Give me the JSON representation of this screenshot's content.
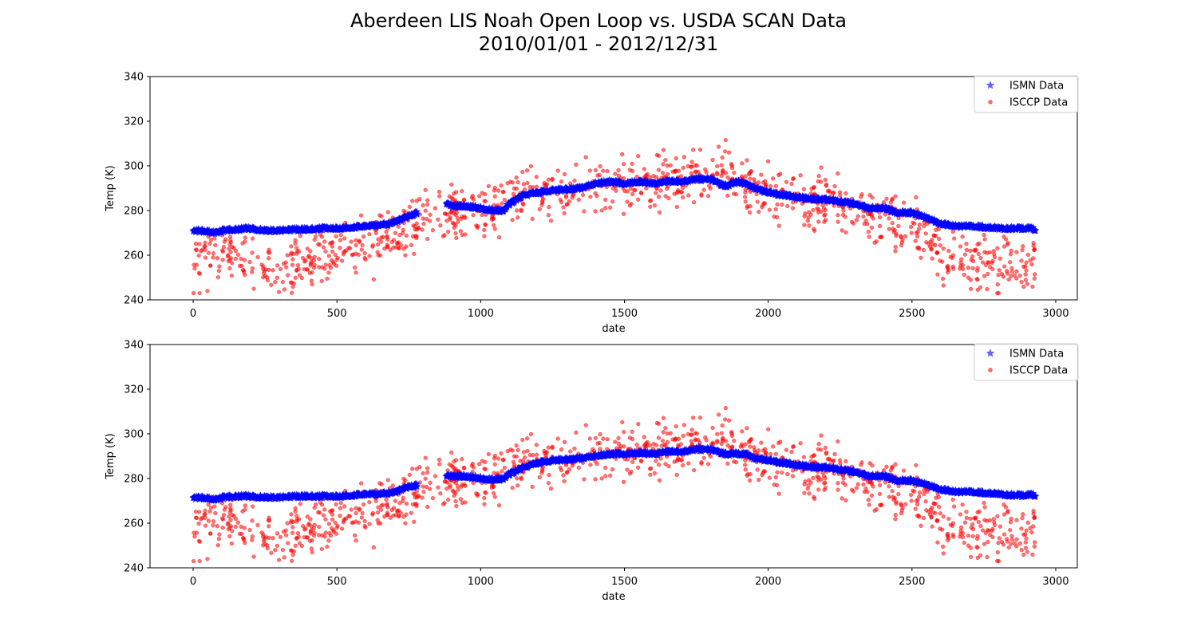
{
  "figure": {
    "title_line1": "Aberdeen LIS Noah Open Loop vs. USDA SCAN Data",
    "title_line2": "2010/01/01 - 2012/12/31"
  },
  "colors": {
    "ismn": "#0000ff",
    "isccp": "#ff0000"
  },
  "chart_data": [
    {
      "type": "scatter",
      "xlabel": "date",
      "ylabel": "Temp (K)",
      "xlim": [
        -150,
        3075
      ],
      "ylim": [
        240,
        340
      ],
      "xticks": [
        0,
        500,
        1000,
        1500,
        2000,
        2500,
        3000
      ],
      "yticks": [
        240,
        260,
        280,
        300,
        320,
        340
      ],
      "legend": {
        "placement": "top-right",
        "entries": [
          "ISMN Data",
          "ISCCP Data"
        ]
      },
      "series": [
        {
          "name": "ISMN Data",
          "marker": "star",
          "color": "#0000ff",
          "segments": [
            {
              "x": [
                0,
                50,
                80,
                100,
                150,
                200,
                250,
                300,
                350,
                400,
                450,
                500,
                550,
                600,
                650,
                680,
                700,
                720,
                740,
                760,
                780
              ],
              "y": [
                271,
                270.5,
                270,
                271,
                271.5,
                272,
                271,
                271,
                271.5,
                271.5,
                272,
                272,
                272.5,
                273,
                273.5,
                274,
                275,
                276,
                277,
                278,
                279
              ]
            },
            {
              "x": [
                880,
                900,
                950,
                1000,
                1050,
                1080,
                1100,
                1150,
                1200,
                1250,
                1300,
                1350,
                1400,
                1450,
                1500,
                1550,
                1600,
                1650,
                1700,
                1750,
                1800,
                1850,
                1900,
                1920,
                1950,
                2000,
                2050,
                2100,
                2150,
                2200,
                2250,
                2300,
                2350,
                2400,
                2450,
                2500,
                2550,
                2600,
                2650,
                2700,
                2750,
                2800,
                2850,
                2900,
                2930
              ],
              "y": [
                283,
                282,
                282,
                281,
                280,
                280,
                283,
                287,
                288,
                289,
                289.5,
                290,
                292,
                293,
                292,
                293,
                292,
                293,
                293,
                294,
                294,
                291,
                293,
                292,
                290,
                288,
                287,
                286,
                285,
                285,
                284,
                283,
                281,
                281,
                279,
                279,
                277,
                274,
                273,
                273,
                272.5,
                272,
                272,
                272,
                271.5
              ]
            }
          ]
        },
        {
          "name": "ISCCP Data",
          "marker": "circle",
          "color": "#ff0000",
          "anchors": {
            "x": [
              0,
              100,
              200,
              260,
              330,
              400,
              450,
              500,
              560,
              620,
              680,
              720,
              780,
              850,
              920,
              1000,
              1050,
              1100,
              1200,
              1300,
              1400,
              1500,
              1600,
              1700,
              1800,
              1850,
              1900,
              1950,
              2000,
              2100,
              2200,
              2300,
              2400,
              2500,
              2560,
              2620,
              2700,
              2800,
              2900,
              2930
            ],
            "y": [
              255,
              262,
              258,
              253,
              254,
              255,
              258,
              262,
              265,
              264,
              268,
              271,
              275,
              280,
              279,
              280,
              283,
              287,
              288,
              288,
              290,
              292,
              293,
              295,
              298,
              298,
              297,
              293,
              288,
              286,
              284,
              282,
              275,
              271,
              266,
              260,
              257,
              256,
              257,
              256
            ]
          },
          "spread": 9,
          "range": [
            243,
            317
          ]
        }
      ]
    },
    {
      "type": "scatter",
      "xlabel": "date",
      "ylabel": "Temp (K)",
      "xlim": [
        -150,
        3075
      ],
      "ylim": [
        240,
        340
      ],
      "xticks": [
        0,
        500,
        1000,
        1500,
        2000,
        2500,
        3000
      ],
      "yticks": [
        240,
        260,
        280,
        300,
        320,
        340
      ],
      "legend": {
        "placement": "top-right",
        "entries": [
          "ISMN Data",
          "ISCCP Data"
        ]
      },
      "series": [
        {
          "name": "ISMN Data",
          "marker": "star",
          "color": "#0000ff",
          "segments": [
            {
              "x": [
                0,
                50,
                80,
                100,
                150,
                200,
                250,
                300,
                350,
                400,
                450,
                500,
                550,
                600,
                650,
                680,
                700,
                720,
                740,
                760,
                780
              ],
              "y": [
                271.5,
                271,
                270.5,
                271.5,
                272,
                272,
                271.5,
                271.5,
                272,
                272,
                272,
                272,
                272.5,
                273,
                273,
                273.5,
                274,
                275,
                276,
                276.5,
                277
              ]
            },
            {
              "x": [
                880,
                900,
                950,
                1000,
                1050,
                1080,
                1100,
                1150,
                1200,
                1250,
                1300,
                1350,
                1400,
                1450,
                1500,
                1550,
                1600,
                1650,
                1700,
                1750,
                1800,
                1850,
                1900,
                1920,
                1950,
                2000,
                2050,
                2100,
                2150,
                2200,
                2250,
                2300,
                2350,
                2400,
                2450,
                2500,
                2550,
                2600,
                2650,
                2700,
                2750,
                2800,
                2850,
                2900,
                2930
              ],
              "y": [
                281,
                281,
                281,
                280,
                279.5,
                280,
                282,
                285,
                287,
                288,
                288.5,
                289,
                290,
                291,
                291,
                291.5,
                291,
                292,
                292,
                293,
                293,
                291,
                291,
                291,
                289,
                288,
                287,
                286,
                285,
                285,
                284,
                283,
                281,
                281,
                279,
                279,
                277.5,
                275,
                274,
                274,
                273.5,
                273,
                272.5,
                272.5,
                272.5
              ]
            }
          ]
        },
        {
          "name": "ISCCP Data",
          "marker": "circle",
          "color": "#ff0000",
          "anchors": {
            "x": [
              0,
              100,
              200,
              260,
              330,
              400,
              450,
              500,
              560,
              620,
              680,
              720,
              780,
              850,
              920,
              1000,
              1050,
              1100,
              1200,
              1300,
              1400,
              1500,
              1600,
              1700,
              1800,
              1850,
              1900,
              1950,
              2000,
              2100,
              2200,
              2300,
              2400,
              2500,
              2560,
              2620,
              2700,
              2800,
              2900,
              2930
            ],
            "y": [
              255,
              262,
              258,
              253,
              254,
              255,
              258,
              262,
              265,
              264,
              268,
              271,
              275,
              280,
              279,
              280,
              283,
              287,
              288,
              288,
              290,
              292,
              293,
              295,
              298,
              298,
              297,
              293,
              288,
              286,
              284,
              282,
              275,
              271,
              266,
              260,
              257,
              256,
              257,
              256
            ]
          },
          "spread": 9,
          "range": [
            243,
            317
          ]
        }
      ]
    }
  ]
}
